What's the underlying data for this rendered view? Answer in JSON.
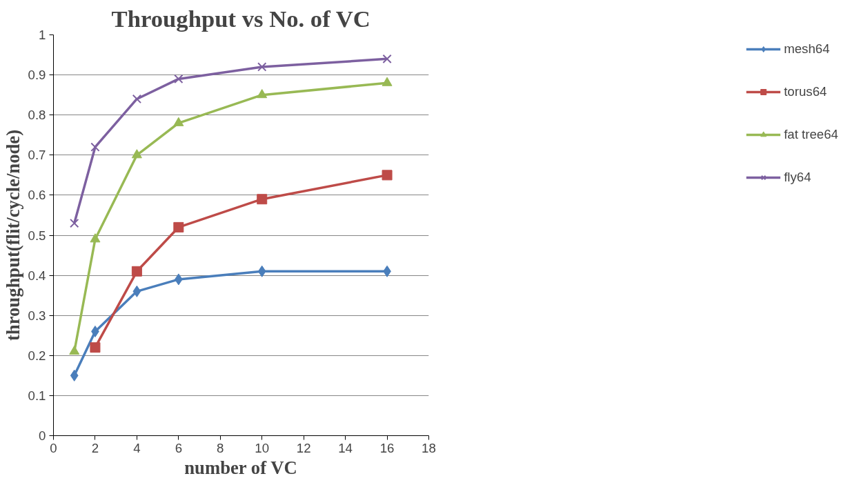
{
  "chart_data": {
    "type": "line",
    "title": "Throughput vs No. of VC",
    "xlabel": "number of VC",
    "ylabel": "throughput(flit/cycle/node)",
    "x": [
      1,
      2,
      4,
      6,
      10,
      16
    ],
    "series": [
      {
        "name": "mesh64",
        "color": "#4a7ebb",
        "marker": "diamond",
        "values": [
          0.15,
          0.26,
          0.36,
          0.39,
          0.41,
          0.41
        ]
      },
      {
        "name": "torus64",
        "color": "#be4b48",
        "marker": "square",
        "x": [
          2,
          4,
          6,
          10,
          16
        ],
        "values": [
          0.22,
          0.41,
          0.52,
          0.59,
          0.65
        ]
      },
      {
        "name": "fat tree64",
        "color": "#98b954",
        "marker": "triangle",
        "values": [
          0.21,
          0.49,
          0.7,
          0.78,
          0.85,
          0.88
        ]
      },
      {
        "name": "fly64",
        "color": "#7d60a0",
        "marker": "cross",
        "values": [
          0.53,
          0.72,
          0.84,
          0.89,
          0.92,
          0.94
        ]
      }
    ],
    "xlim": [
      0,
      18
    ],
    "xticks": [
      0,
      2,
      4,
      6,
      8,
      10,
      12,
      14,
      16,
      18
    ],
    "ylim": [
      0,
      1
    ],
    "yticks": [
      0,
      0.1,
      0.2,
      0.3,
      0.4,
      0.5,
      0.6,
      0.7,
      0.8,
      0.9,
      1
    ],
    "grid": "y",
    "legend": "right",
    "line_style": "solid"
  }
}
